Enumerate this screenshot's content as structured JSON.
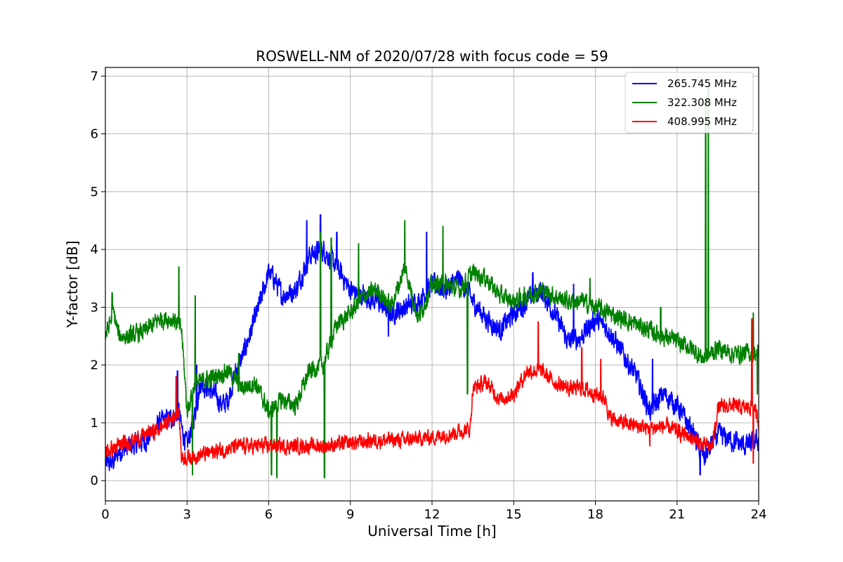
{
  "chart_data": {
    "type": "line",
    "title": "ROSWELL-NM of 2020/07/28 with focus code = 59",
    "xlabel": "Universal Time [h]",
    "ylabel": "Y-factor [dB]",
    "xlim": [
      0,
      24
    ],
    "ylim": [
      -0.35,
      7.15
    ],
    "xticks": [
      0,
      3,
      6,
      9,
      12,
      15,
      18,
      21,
      24
    ],
    "yticks": [
      0,
      1,
      2,
      3,
      4,
      5,
      6,
      7
    ],
    "grid": true,
    "legend_position": "top-right",
    "series": [
      {
        "name": "265.745 MHz",
        "color": "#0000ff",
        "noise": 0.28,
        "x": [
          0,
          0.25,
          0.5,
          1,
          1.5,
          2,
          2.5,
          2.7,
          2.8,
          3,
          3.3,
          3.5,
          4,
          4.3,
          4.5,
          4.8,
          5,
          5.5,
          6,
          6.2,
          6.5,
          7,
          7.5,
          8,
          8.5,
          9,
          9.5,
          10,
          10.5,
          11,
          11.5,
          12,
          12.5,
          13,
          13.5,
          14,
          14.5,
          15,
          15.5,
          16,
          16.5,
          17,
          17.5,
          18,
          18.5,
          19,
          19.5,
          20,
          20.5,
          21,
          21.5,
          22,
          22.5,
          23,
          23.5,
          24
        ],
        "y": [
          0.3,
          0.3,
          0.5,
          0.6,
          0.7,
          1.0,
          1.1,
          1.2,
          0.9,
          0.6,
          1.2,
          1.7,
          1.5,
          1.3,
          1.4,
          1.9,
          2.1,
          2.8,
          3.6,
          3.5,
          3.2,
          3.3,
          3.9,
          4.0,
          3.7,
          3.3,
          3.2,
          3.1,
          2.9,
          3.0,
          3.1,
          3.4,
          3.3,
          3.5,
          3.1,
          2.8,
          2.6,
          2.9,
          3.1,
          3.3,
          2.9,
          2.4,
          2.5,
          2.8,
          2.6,
          2.2,
          1.8,
          1.2,
          1.5,
          1.3,
          0.9,
          0.4,
          0.8,
          0.7,
          0.6,
          0.7
        ]
      },
      {
        "name": "322.308 MHz",
        "color": "#008000",
        "noise": 0.24,
        "x": [
          0,
          0.3,
          0.5,
          1,
          1.5,
          2,
          2.5,
          2.8,
          3,
          3.3,
          3.5,
          4,
          4.5,
          5,
          5.5,
          6,
          6.5,
          7,
          7.5,
          8,
          8.5,
          9,
          9.5,
          10,
          10.5,
          11,
          11.5,
          12,
          12.5,
          13,
          13.5,
          14,
          14.5,
          15,
          15.5,
          16,
          16.5,
          17,
          17.5,
          18,
          18.5,
          19,
          19.5,
          20,
          20.5,
          21,
          21.5,
          22,
          22.5,
          23,
          23.5,
          24
        ],
        "y": [
          2.5,
          2.9,
          2.5,
          2.5,
          2.6,
          2.8,
          2.8,
          2.6,
          1.2,
          1.7,
          1.7,
          1.8,
          1.9,
          1.6,
          1.7,
          1.2,
          1.4,
          1.3,
          1.9,
          2.0,
          2.7,
          2.9,
          3.2,
          3.3,
          3.0,
          3.7,
          2.8,
          3.4,
          3.4,
          3.3,
          3.6,
          3.5,
          3.2,
          3.1,
          3.2,
          3.3,
          3.2,
          3.1,
          3.1,
          3.0,
          2.9,
          2.8,
          2.7,
          2.6,
          2.5,
          2.4,
          2.3,
          2.1,
          2.3,
          2.2,
          2.2,
          2.2
        ]
      },
      {
        "name": "408.995 MHz",
        "color": "#ff0000",
        "noise": 0.2,
        "x": [
          0,
          0.5,
          1,
          1.5,
          2,
          2.5,
          2.7,
          2.8,
          3,
          4,
          5,
          6,
          7,
          8,
          9,
          10,
          11,
          12,
          13,
          13.4,
          13.5,
          14,
          14.5,
          15,
          15.5,
          16,
          16.5,
          17,
          17.5,
          18,
          18.4,
          18.5,
          19,
          19.5,
          20,
          20.5,
          21,
          21.5,
          22,
          22.3,
          22.5,
          23,
          23.5,
          23.8,
          24
        ],
        "y": [
          0.5,
          0.6,
          0.7,
          0.8,
          0.9,
          1.1,
          1.2,
          0.4,
          0.4,
          0.5,
          0.6,
          0.6,
          0.6,
          0.6,
          0.65,
          0.7,
          0.7,
          0.75,
          0.85,
          0.9,
          1.6,
          1.7,
          1.4,
          1.5,
          1.9,
          1.9,
          1.7,
          1.6,
          1.6,
          1.5,
          1.4,
          1.1,
          1.0,
          0.95,
          0.9,
          0.95,
          0.85,
          0.75,
          0.6,
          0.6,
          1.25,
          1.3,
          1.25,
          1.3,
          1.0
        ]
      }
    ],
    "spikes": [
      {
        "series": 0,
        "points": [
          [
            2.65,
            1.9
          ],
          [
            3.35,
            2.0
          ],
          [
            7.4,
            4.5
          ],
          [
            7.9,
            4.6
          ],
          [
            8.5,
            4.3
          ],
          [
            10.4,
            2.5
          ],
          [
            11.8,
            4.3
          ],
          [
            15.7,
            3.6
          ],
          [
            17.2,
            3.4
          ],
          [
            20.1,
            2.1
          ],
          [
            21.85,
            0.1
          ]
        ]
      },
      {
        "series": 1,
        "points": [
          [
            0.25,
            3.25
          ],
          [
            2.7,
            3.7
          ],
          [
            3.2,
            0.1
          ],
          [
            3.3,
            3.2
          ],
          [
            4.9,
            2.2
          ],
          [
            6.1,
            0.1
          ],
          [
            6.3,
            0.05
          ],
          [
            7.9,
            4.3
          ],
          [
            8.05,
            0.05
          ],
          [
            8.3,
            4.2
          ],
          [
            9.3,
            4.1
          ],
          [
            11.0,
            4.5
          ],
          [
            12.4,
            4.4
          ],
          [
            13.3,
            1.5
          ],
          [
            17.8,
            3.5
          ],
          [
            20.4,
            3.0
          ],
          [
            22.05,
            6.6
          ],
          [
            22.15,
            6.8
          ],
          [
            23.8,
            2.9
          ],
          [
            23.95,
            1.5
          ]
        ]
      },
      {
        "series": 2,
        "points": [
          [
            2.6,
            1.8
          ],
          [
            15.9,
            2.75
          ],
          [
            17.5,
            2.3
          ],
          [
            18.2,
            2.1
          ],
          [
            20.0,
            0.6
          ],
          [
            23.75,
            2.8
          ],
          [
            23.8,
            0.3
          ]
        ]
      }
    ]
  }
}
